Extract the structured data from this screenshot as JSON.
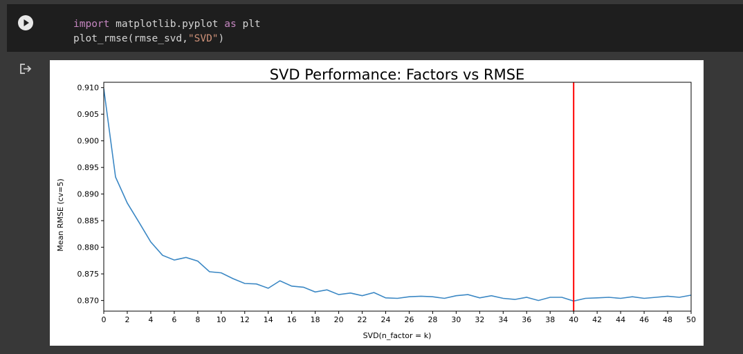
{
  "code": {
    "line1": {
      "kw1": "import",
      "mid": " matplotlib.pyplot ",
      "kw2": "as",
      "tail": " plt"
    },
    "line2": {
      "head": "plot_rmse(rmse_svd,",
      "str": "\"SVD\"",
      "tail": ")"
    }
  },
  "chart_data": {
    "type": "line",
    "title": "SVD Performance: Factors vs RMSE",
    "xlabel": "SVD(n_factor = k)",
    "ylabel": "Mean RMSE (cv=5)",
    "xlim": [
      0,
      50
    ],
    "ylim": [
      0.868,
      0.911
    ],
    "xticks": [
      0,
      2,
      4,
      6,
      8,
      10,
      12,
      14,
      16,
      18,
      20,
      22,
      24,
      26,
      28,
      30,
      32,
      34,
      36,
      38,
      40,
      42,
      44,
      46,
      48,
      50
    ],
    "yticks": [
      0.87,
      0.875,
      0.88,
      0.885,
      0.89,
      0.895,
      0.9,
      0.905,
      0.91
    ],
    "ytick_labels": [
      "0.870",
      "0.875",
      "0.880",
      "0.885",
      "0.890",
      "0.895",
      "0.900",
      "0.905",
      "0.910"
    ],
    "grid": false,
    "series": [
      {
        "name": "RMSE",
        "color": "#3a87c4",
        "x": [
          0,
          1,
          2,
          3,
          4,
          5,
          6,
          7,
          8,
          9,
          10,
          11,
          12,
          13,
          14,
          15,
          16,
          17,
          18,
          19,
          20,
          21,
          22,
          23,
          24,
          25,
          26,
          27,
          28,
          29,
          30,
          31,
          32,
          33,
          34,
          35,
          36,
          37,
          38,
          39,
          40,
          41,
          42,
          43,
          44,
          45,
          46,
          47,
          48,
          49,
          50
        ],
        "values": [
          0.9098,
          0.8932,
          0.8883,
          0.8847,
          0.881,
          0.8785,
          0.8776,
          0.8781,
          0.8774,
          0.8754,
          0.8752,
          0.8741,
          0.8732,
          0.8731,
          0.8723,
          0.8737,
          0.8727,
          0.8725,
          0.8716,
          0.872,
          0.8711,
          0.8714,
          0.8709,
          0.8715,
          0.8705,
          0.8704,
          0.8707,
          0.8708,
          0.8707,
          0.8704,
          0.8709,
          0.8711,
          0.8705,
          0.8709,
          0.8704,
          0.8702,
          0.8706,
          0.87,
          0.8706,
          0.8706,
          0.8699,
          0.8704,
          0.8705,
          0.8706,
          0.8704,
          0.8707,
          0.8704,
          0.8706,
          0.8708,
          0.8706,
          0.871
        ]
      }
    ],
    "vline": {
      "x": 40,
      "color": "#ff0000"
    }
  }
}
